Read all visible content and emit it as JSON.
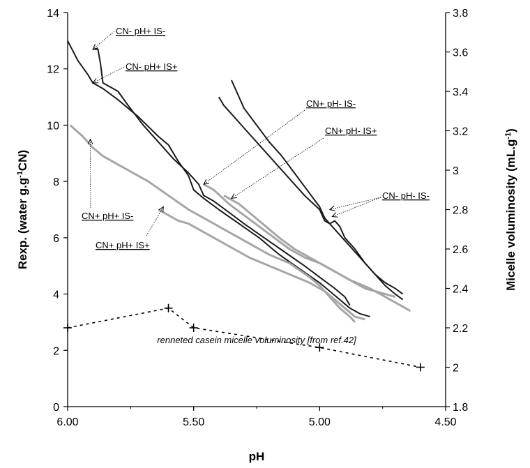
{
  "chart_data": {
    "type": "line",
    "xlabel": "pH",
    "ylabel_left": "Rexp. (water g.g-1CN)",
    "ylabel_right": "Micelle voluminosity (mL.g-1)",
    "xlim": [
      6.0,
      4.5
    ],
    "x_ticks": [
      "6.00",
      "5.50",
      "5.00",
      "4.50"
    ],
    "ylim_left": [
      0,
      14
    ],
    "y_ticks_left": [
      "0",
      "2",
      "4",
      "6",
      "8",
      "10",
      "12",
      "14"
    ],
    "ylim_right": [
      1.8,
      3.8
    ],
    "y_ticks_right": [
      "1.8",
      "2",
      "2.2",
      "2.4",
      "2.6",
      "2.8",
      "3",
      "3.2",
      "3.4",
      "3.6",
      "3.8"
    ],
    "grid": false,
    "colors": {
      "black_series": "#1a1a1a",
      "gray_series": "#a6a6a6",
      "reference": "#000000"
    },
    "series": [
      {
        "name": "CN- pH+ IS-",
        "color": "black",
        "axis": "left",
        "x": [
          6.0,
          5.96,
          5.92,
          5.9,
          5.86,
          5.8,
          5.72,
          5.64,
          5.6,
          5.56,
          5.52,
          5.5,
          5.46,
          5.4,
          5.32,
          5.24,
          5.16,
          5.08,
          5.0,
          4.96,
          4.92,
          4.88,
          4.84,
          4.8
        ],
        "y": [
          13.0,
          12.3,
          11.8,
          11.5,
          11.3,
          10.9,
          10.3,
          9.6,
          9.3,
          8.7,
          8.2,
          7.7,
          7.4,
          7.0,
          6.5,
          6.0,
          5.4,
          4.9,
          4.4,
          4.1,
          3.8,
          3.5,
          3.3,
          3.2
        ]
      },
      {
        "name": "CN- pH+ IS+",
        "color": "black",
        "axis": "left",
        "x": [
          5.9,
          5.88,
          5.87,
          5.86,
          5.84,
          5.8,
          5.76,
          5.7,
          5.64,
          5.58,
          5.52,
          5.48,
          5.46,
          5.42,
          5.36,
          5.3,
          5.22,
          5.14,
          5.06,
          5.0,
          4.94,
          4.9,
          4.88
        ],
        "y": [
          12.7,
          12.7,
          12.2,
          11.5,
          11.4,
          11.2,
          10.7,
          10.0,
          9.4,
          8.8,
          8.3,
          7.9,
          7.5,
          7.3,
          6.9,
          6.5,
          6.0,
          5.5,
          5.0,
          4.6,
          4.2,
          3.9,
          3.6
        ]
      },
      {
        "name": "CN+ pH- IS-",
        "color": "gray",
        "axis": "left",
        "x": [
          5.46,
          5.42,
          5.36,
          5.3,
          5.24,
          5.18,
          5.12,
          5.06,
          5.0,
          4.94,
          4.88,
          4.8,
          4.74,
          4.68,
          4.64
        ],
        "y": [
          7.9,
          7.7,
          7.2,
          6.8,
          6.4,
          6.0,
          5.6,
          5.3,
          5.1,
          4.8,
          4.5,
          4.2,
          3.9,
          3.6,
          3.4
        ]
      },
      {
        "name": "CN+ pH- IS+",
        "color": "gray",
        "axis": "left",
        "x": [
          5.38,
          5.32,
          5.24,
          5.16,
          5.1,
          5.04,
          4.98,
          4.92,
          4.86,
          4.82,
          4.78,
          4.74,
          4.7
        ],
        "y": [
          7.5,
          7.2,
          6.6,
          6.0,
          5.6,
          5.3,
          5.0,
          4.7,
          4.4,
          4.2,
          4.1,
          4.0,
          3.9
        ]
      },
      {
        "name": "CN+ pH+ IS-",
        "color": "gray",
        "axis": "left",
        "x": [
          5.99,
          5.94,
          5.9,
          5.86,
          5.8,
          5.74,
          5.68,
          5.6,
          5.52,
          5.44,
          5.36,
          5.28,
          5.2,
          5.12,
          5.04,
          5.0,
          4.96,
          4.92,
          4.88,
          4.86
        ],
        "y": [
          10.0,
          9.6,
          9.2,
          8.9,
          8.6,
          8.3,
          8.0,
          7.5,
          7.0,
          6.6,
          6.2,
          5.8,
          5.4,
          5.1,
          4.6,
          4.3,
          3.9,
          3.5,
          3.2,
          3.0
        ]
      },
      {
        "name": "CN+ pH+ IS+",
        "color": "gray",
        "axis": "left",
        "x": [
          5.64,
          5.6,
          5.56,
          5.52,
          5.48,
          5.44,
          5.4,
          5.34,
          5.28,
          5.2,
          5.12,
          5.04,
          4.98,
          4.94,
          4.9,
          4.86,
          4.82
        ],
        "y": [
          7.0,
          6.8,
          6.6,
          6.5,
          6.3,
          6.1,
          5.9,
          5.6,
          5.3,
          5.0,
          4.7,
          4.4,
          4.1,
          3.8,
          3.5,
          3.2,
          3.1
        ]
      },
      {
        "name": "CN- pH- IS-",
        "color": "black",
        "axis": "left",
        "x": [
          5.35,
          5.33,
          5.3,
          5.25,
          5.2,
          5.15,
          5.1,
          5.05,
          5.0,
          4.98,
          4.94,
          4.9,
          4.86,
          4.82,
          4.78,
          4.74,
          4.7,
          4.67
        ],
        "y": [
          11.6,
          11.2,
          10.6,
          10.0,
          9.4,
          8.9,
          8.3,
          7.7,
          7.1,
          6.7,
          6.3,
          5.9,
          5.5,
          5.1,
          4.7,
          4.4,
          4.2,
          4.0
        ]
      },
      {
        "name": "CN- pH- IS-",
        "color": "black",
        "axis": "left",
        "x": [
          5.4,
          5.38,
          5.34,
          5.3,
          5.24,
          5.18,
          5.12,
          5.06,
          5.0,
          4.98,
          4.96,
          4.94,
          4.92,
          4.9,
          4.86,
          4.82,
          4.78,
          4.74,
          4.7,
          4.67
        ],
        "y": [
          11.0,
          10.7,
          10.3,
          9.9,
          9.3,
          8.7,
          8.1,
          7.5,
          7.0,
          6.6,
          6.5,
          6.6,
          6.4,
          6.0,
          5.6,
          5.1,
          4.7,
          4.3,
          4.0,
          3.8
        ]
      },
      {
        "name": "renneted casein micelle voluminosity [from ref.42]",
        "color": "reference",
        "axis": "right",
        "x": [
          6.0,
          5.6,
          5.5,
          5.0,
          4.6
        ],
        "y": [
          2.2,
          2.3,
          2.2,
          2.1,
          2.0
        ]
      }
    ],
    "annotations": [
      {
        "text": "CN- pH+ IS-",
        "points_to_x": 5.9,
        "points_to_y": 12.7
      },
      {
        "text": "CN- pH+ IS+",
        "points_to_x": 5.9,
        "points_to_y": 11.5
      },
      {
        "text": "CN+ pH- IS-",
        "points_to_x": 5.46,
        "points_to_y": 7.9
      },
      {
        "text": "CN+ pH- IS+",
        "points_to_x": 5.35,
        "points_to_y": 7.4
      },
      {
        "text": "CN- pH- IS-",
        "points_to_x": 4.96,
        "points_to_y": 7.0
      },
      {
        "text": "CN+ pH+ IS-",
        "points_to_x": 5.91,
        "points_to_y": 9.5
      },
      {
        "text": "CN+ pH+ IS+",
        "points_to_x": 5.62,
        "points_to_y": 7.1
      }
    ],
    "note": "renneted casein micelle voluminosity [from ref.42]"
  }
}
